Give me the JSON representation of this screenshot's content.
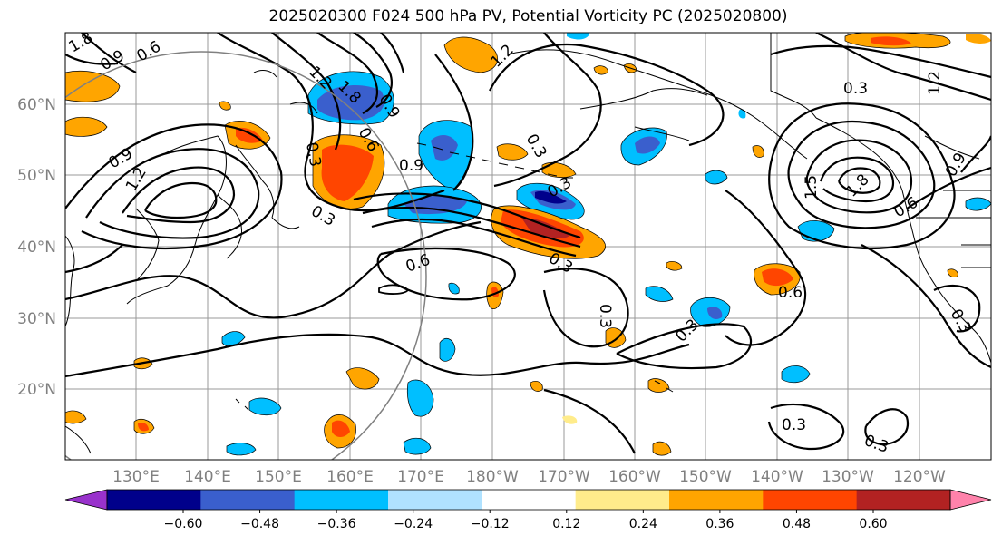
{
  "title": "2025020300 F024 500 hPa PV, Potential Vorticity PC (2025020800)",
  "map": {
    "lat_labels": [
      "60°N",
      "50°N",
      "40°N",
      "30°N",
      "20°N"
    ],
    "lon_labels": [
      "130°E",
      "140°E",
      "150°E",
      "160°E",
      "170°E",
      "180°W",
      "170°W",
      "160°W",
      "150°W",
      "140°W",
      "130°W",
      "120°W"
    ],
    "contour_labels": [
      "1.8",
      "0.9",
      "0.6",
      "1.2",
      "1.8",
      "0.9",
      "0.6",
      "0.3",
      "0.9",
      "0.3",
      "0.3",
      "0.6",
      "0.9",
      "1.2",
      "0.3",
      "1.2",
      "0.3",
      "0.3",
      "1.5",
      "1.8",
      "0.6",
      "0.9",
      "1.2",
      "0.3",
      "0.6",
      "0.3",
      "0.3",
      "0.3",
      "0.3"
    ],
    "colors": {
      "grid": "#999999",
      "coast": "#000000",
      "contour": "#000000",
      "ring": "#808080"
    }
  },
  "colorbar": {
    "ticks": [
      "−0.60",
      "−0.48",
      "−0.36",
      "−0.24",
      "−0.12",
      "0.12",
      "0.24",
      "0.36",
      "0.48",
      "0.60"
    ],
    "colors": [
      "#9932cc",
      "#00008b",
      "#3a5fcd",
      "#00bfff",
      "#b0e2ff",
      "#ffffff",
      "#ffec8b",
      "#ffa500",
      "#ff4500",
      "#b22222",
      "#ff82ab"
    ]
  }
}
